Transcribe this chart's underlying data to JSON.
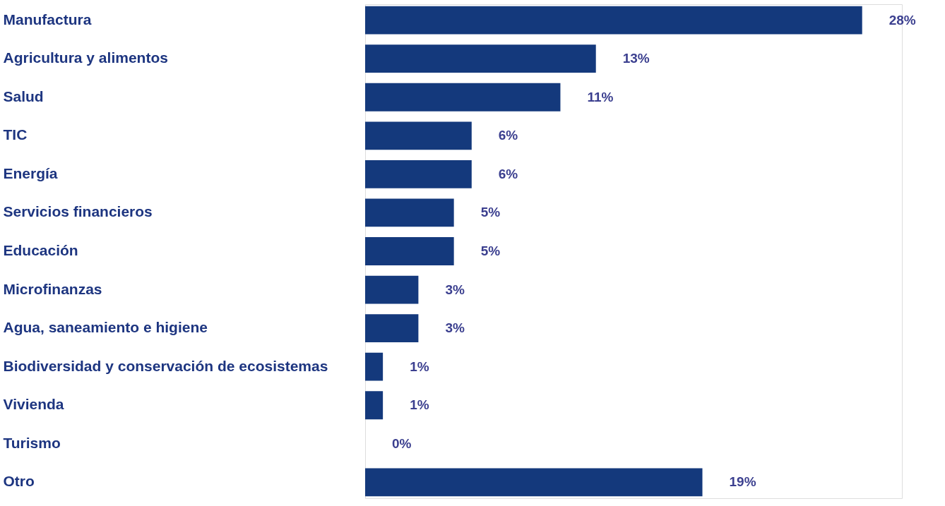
{
  "chart_data": {
    "type": "bar",
    "orientation": "horizontal",
    "categories": [
      "Manufactura",
      "Agricultura y alimentos",
      "Salud",
      "TIC",
      "Energía",
      "Servicios financieros",
      "Educación",
      "Microfinanzas",
      "Agua, saneamiento e higiene",
      "Biodiversidad y conservación de ecosistemas",
      "Vivienda",
      "Turismo",
      "Otro"
    ],
    "values": [
      28,
      13,
      11,
      6,
      6,
      5,
      5,
      3,
      3,
      1,
      1,
      0,
      19
    ],
    "value_labels": [
      "28%",
      "13%",
      "11%",
      "6%",
      "6%",
      "5%",
      "5%",
      "3%",
      "3%",
      "1%",
      "1%",
      "0%",
      "19%"
    ],
    "color": "#14397c"
  }
}
